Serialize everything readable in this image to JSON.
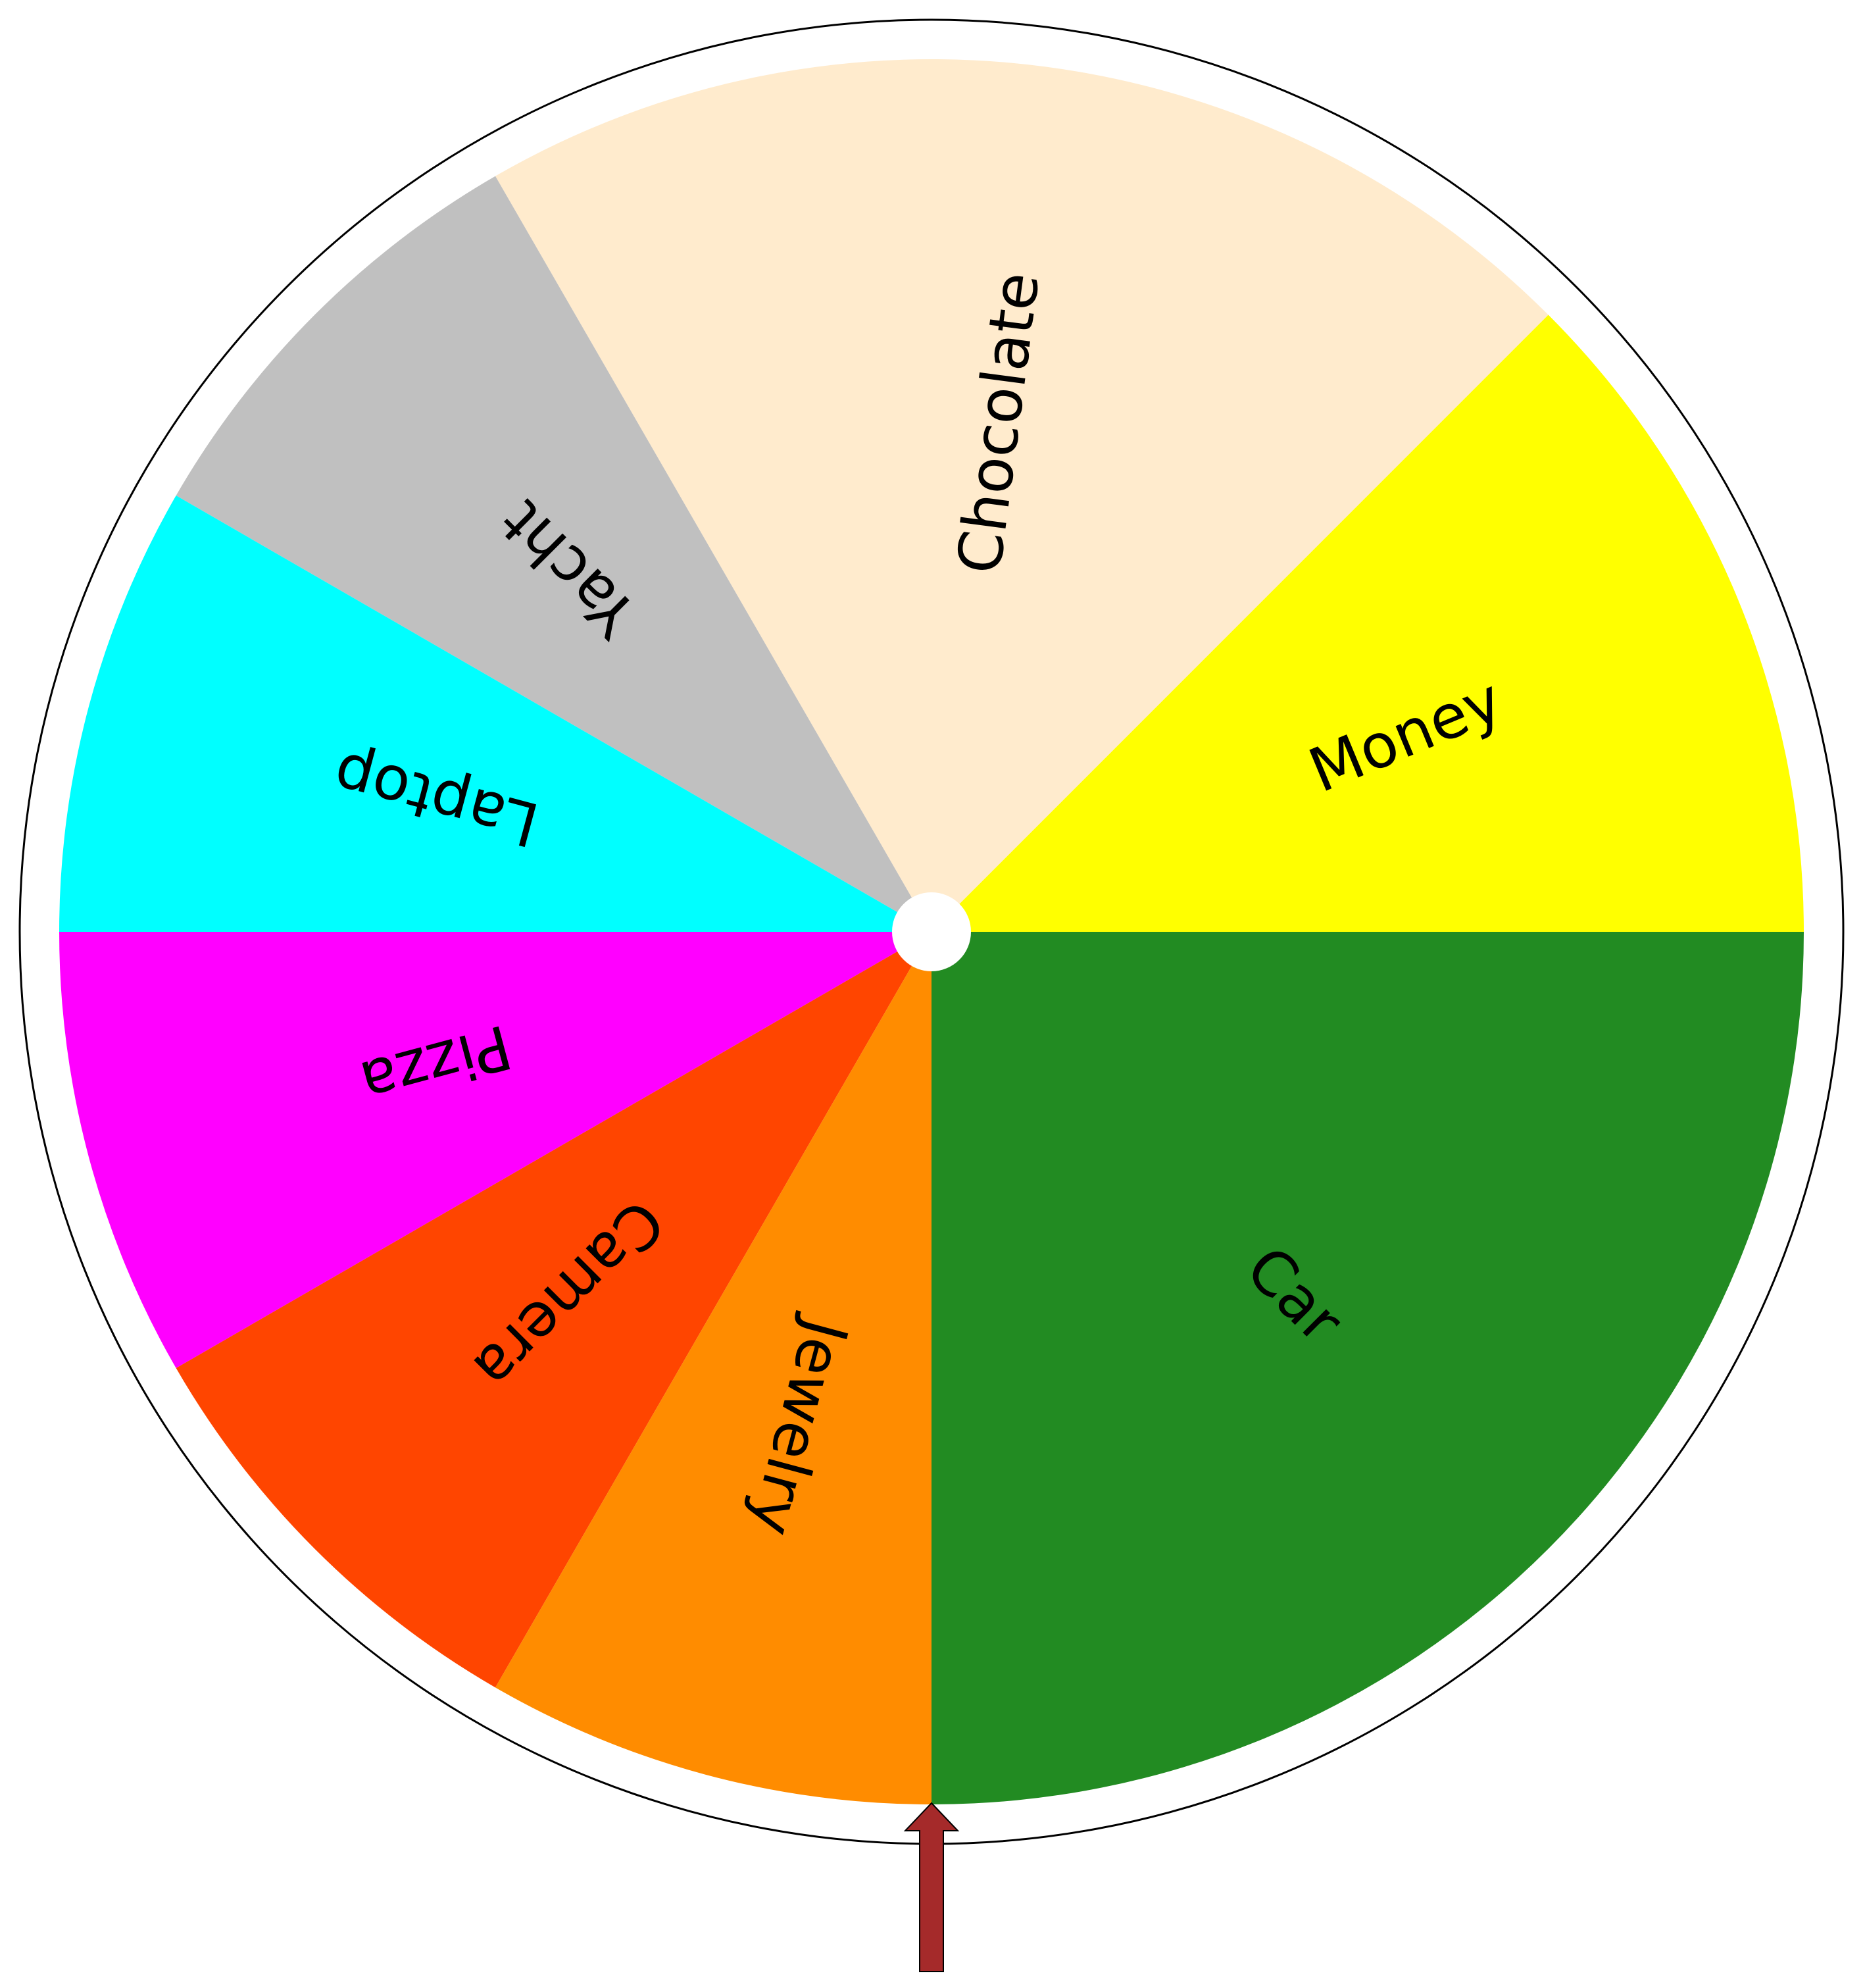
{
  "wheel": {
    "start_angle_deg": 0,
    "direction": "counterclockwise-from-right",
    "pointer_angle_deg": 270,
    "segments": [
      {
        "label": "Money",
        "sweep_deg": 45,
        "color": "#FFFF00"
      },
      {
        "label": "Chocolate",
        "sweep_deg": 75,
        "color": "#FFEBCD"
      },
      {
        "label": "Yacht",
        "sweep_deg": 30,
        "color": "#C0C0C0"
      },
      {
        "label": "Laptop",
        "sweep_deg": 30,
        "color": "#00FFFF"
      },
      {
        "label": "Pizza",
        "sweep_deg": 30,
        "color": "#FF00FF"
      },
      {
        "label": "Camera",
        "sweep_deg": 30,
        "color": "#FF4500"
      },
      {
        "label": "Jewelry",
        "sweep_deg": 30,
        "color": "#FF8C00"
      },
      {
        "label": "Car",
        "sweep_deg": 90,
        "color": "#228B22"
      }
    ],
    "rim_color": "#FFFFFF",
    "outline_color": "#000000",
    "hub_color": "#FFFFFF",
    "pointer_color": "#A52A2A"
  }
}
